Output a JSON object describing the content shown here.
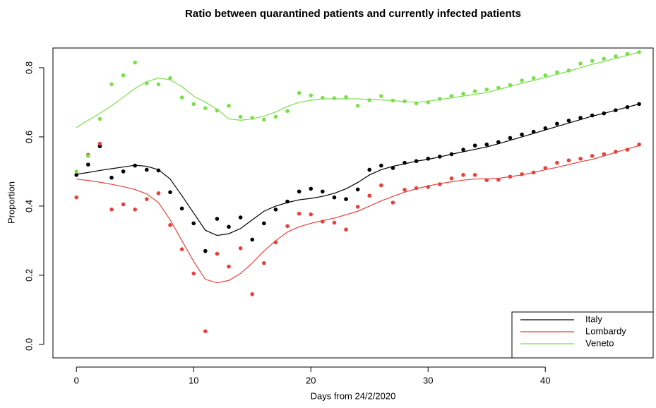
{
  "chart_data": {
    "type": "scatter",
    "title": "Ratio between quarantined patients and currently infected patients",
    "x_label": "Days from 24/2/2020",
    "y_label": "Proportion",
    "x": [
      0,
      1,
      2,
      3,
      4,
      5,
      6,
      7,
      8,
      9,
      10,
      11,
      12,
      13,
      14,
      15,
      16,
      17,
      18,
      19,
      20,
      21,
      22,
      23,
      24,
      25,
      26,
      27,
      28,
      29,
      30,
      31,
      32,
      33,
      34,
      35,
      36,
      37,
      38,
      39,
      40,
      41,
      42,
      43,
      44,
      45,
      46,
      47,
      48
    ],
    "series": [
      {
        "name": "Italy",
        "color": "#000000",
        "values": [
          0.49,
          0.52,
          0.573,
          0.482,
          0.5,
          0.517,
          0.505,
          0.503,
          0.44,
          0.393,
          0.35,
          0.27,
          0.363,
          0.34,
          0.367,
          0.303,
          0.35,
          0.39,
          0.413,
          0.442,
          0.45,
          0.442,
          0.425,
          0.42,
          0.448,
          0.505,
          0.517,
          0.51,
          0.525,
          0.53,
          0.537,
          0.543,
          0.55,
          0.563,
          0.575,
          0.578,
          0.585,
          0.597,
          0.607,
          0.615,
          0.625,
          0.638,
          0.647,
          0.655,
          0.662,
          0.668,
          0.677,
          0.686,
          0.695
        ],
        "fit": [
          0.492,
          0.497,
          0.503,
          0.508,
          0.513,
          0.518,
          0.515,
          0.505,
          0.478,
          0.43,
          0.38,
          0.33,
          0.315,
          0.32,
          0.335,
          0.36,
          0.385,
          0.4,
          0.41,
          0.418,
          0.422,
          0.428,
          0.437,
          0.45,
          0.468,
          0.49,
          0.505,
          0.515,
          0.522,
          0.53,
          0.535,
          0.542,
          0.55,
          0.557,
          0.564,
          0.571,
          0.58,
          0.59,
          0.6,
          0.61,
          0.62,
          0.63,
          0.64,
          0.65,
          0.66,
          0.668,
          0.677,
          0.686,
          0.695
        ]
      },
      {
        "name": "Lombardy",
        "color": "#e8413c",
        "values": [
          0.425,
          0.548,
          0.58,
          0.39,
          0.405,
          0.39,
          0.42,
          0.437,
          0.345,
          0.275,
          0.205,
          0.038,
          0.262,
          0.225,
          0.278,
          0.145,
          0.235,
          0.295,
          0.342,
          0.378,
          0.376,
          0.355,
          0.352,
          0.332,
          0.398,
          0.43,
          0.46,
          0.41,
          0.447,
          0.452,
          0.455,
          0.463,
          0.48,
          0.49,
          0.49,
          0.475,
          0.476,
          0.485,
          0.492,
          0.497,
          0.51,
          0.525,
          0.532,
          0.537,
          0.545,
          0.55,
          0.557,
          0.563,
          0.578
        ],
        "fit": [
          0.478,
          0.474,
          0.469,
          0.463,
          0.456,
          0.448,
          0.435,
          0.41,
          0.36,
          0.3,
          0.24,
          0.188,
          0.178,
          0.185,
          0.205,
          0.235,
          0.27,
          0.3,
          0.325,
          0.34,
          0.35,
          0.358,
          0.365,
          0.375,
          0.385,
          0.4,
          0.415,
          0.428,
          0.44,
          0.45,
          0.458,
          0.465,
          0.47,
          0.475,
          0.478,
          0.479,
          0.48,
          0.485,
          0.49,
          0.497,
          0.505,
          0.512,
          0.52,
          0.528,
          0.535,
          0.545,
          0.555,
          0.565,
          0.575
        ]
      },
      {
        "name": "Veneto",
        "color": "#7ae04a",
        "values": [
          0.5,
          0.545,
          0.652,
          0.752,
          0.778,
          0.815,
          0.755,
          0.752,
          0.77,
          0.714,
          0.695,
          0.683,
          0.676,
          0.69,
          0.658,
          0.655,
          0.65,
          0.658,
          0.675,
          0.727,
          0.72,
          0.713,
          0.712,
          0.715,
          0.69,
          0.706,
          0.718,
          0.705,
          0.703,
          0.697,
          0.7,
          0.71,
          0.718,
          0.725,
          0.732,
          0.737,
          0.742,
          0.75,
          0.763,
          0.77,
          0.778,
          0.787,
          0.792,
          0.812,
          0.82,
          0.826,
          0.833,
          0.84,
          0.845
        ],
        "fit": [
          0.627,
          0.648,
          0.668,
          0.69,
          0.715,
          0.74,
          0.76,
          0.77,
          0.765,
          0.745,
          0.718,
          0.7,
          0.68,
          0.652,
          0.648,
          0.652,
          0.66,
          0.672,
          0.688,
          0.7,
          0.706,
          0.71,
          0.71,
          0.71,
          0.71,
          0.708,
          0.707,
          0.705,
          0.702,
          0.7,
          0.703,
          0.708,
          0.713,
          0.718,
          0.723,
          0.728,
          0.737,
          0.746,
          0.755,
          0.763,
          0.772,
          0.781,
          0.79,
          0.8,
          0.81,
          0.818,
          0.827,
          0.836,
          0.845
        ]
      }
    ],
    "xlim": [
      -2,
      49.2
    ],
    "ylim": [
      -0.039,
      0.857
    ],
    "xticks": [
      0,
      10,
      20,
      30,
      40
    ],
    "yticks": [
      {
        "value": 0,
        "label": "0.0"
      },
      {
        "value": 0.2,
        "label": "0.2"
      },
      {
        "value": 0.4,
        "label": "0.4"
      },
      {
        "value": 0.6,
        "label": "0.6"
      },
      {
        "value": 0.8,
        "label": "0.8"
      }
    ],
    "legend": "bottomright"
  }
}
